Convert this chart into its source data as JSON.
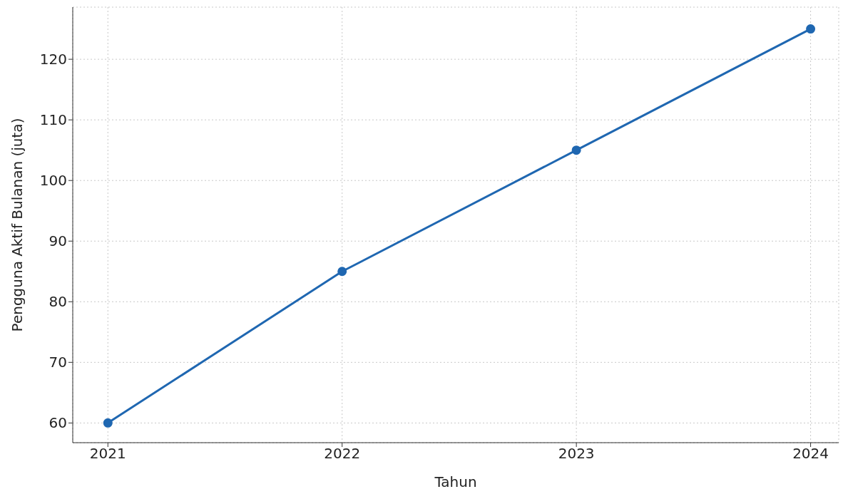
{
  "chart_data": {
    "type": "line",
    "xlabel": "Tahun",
    "ylabel": "Pengguna Aktif Bulanan (juta)",
    "x": [
      2021,
      2022,
      2023,
      2024
    ],
    "series": [
      {
        "color": "#1f67b1",
        "values": [
          60,
          85,
          105,
          125
        ]
      }
    ],
    "xlim": [
      2020.85,
      2024.12
    ],
    "xticks": [
      2021,
      2022,
      2023,
      2024
    ],
    "ylim": [
      56.75,
      128.6
    ],
    "yticks": [
      60,
      70,
      80,
      90,
      100,
      110,
      120
    ],
    "grid": true,
    "marker": "circle",
    "line_style": "solid"
  }
}
